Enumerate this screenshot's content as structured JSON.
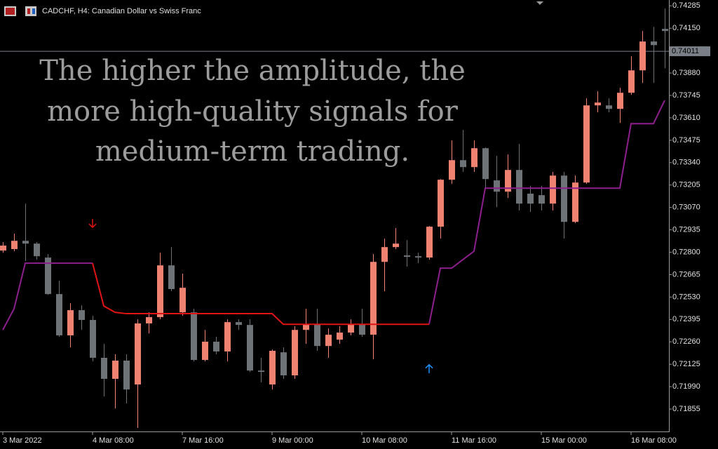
{
  "chart_data": {
    "type": "candlestick",
    "header": "CADCHF, H4:  Canadian Dollar vs Swiss Franc",
    "annotations": [
      "The higher the amplitude, the",
      "more high-quality signals for",
      "medium-term trading."
    ],
    "categories": [
      "3 Mar 2022",
      null,
      null,
      null,
      null,
      null,
      null,
      null,
      "4 Mar 08:00",
      null,
      null,
      null,
      null,
      null,
      null,
      null,
      "7 Mar 16:00",
      null,
      null,
      null,
      null,
      null,
      null,
      null,
      "9 Mar 00:00",
      null,
      null,
      null,
      null,
      null,
      null,
      null,
      "10 Mar 08:00",
      null,
      null,
      null,
      null,
      null,
      null,
      null,
      "11 Mar 16:00",
      null,
      null,
      null,
      null,
      null,
      null,
      null,
      "15 Mar 00:00",
      null,
      null,
      null,
      null,
      null,
      null,
      null,
      "16 Mar 08:00",
      null,
      null,
      null
    ],
    "open": [
      0.7281,
      0.72819,
      0.72869,
      0.72852,
      0.72768,
      0.72548,
      0.72299,
      0.72451,
      0.72392,
      0.72164,
      0.72037,
      0.72147,
      0.72003,
      0.72371,
      0.72409,
      0.72721,
      0.72438,
      0.72438,
      0.72151,
      0.72261,
      0.72202,
      0.72379,
      0.72362,
      0.72087,
      0.72003,
      0.72197,
      0.72058,
      0.72332,
      0.72366,
      0.72235,
      0.72273,
      0.72316,
      0.72366,
      0.72303,
      0.72742,
      0.72831,
      0.72781,
      0.72776,
      0.72768,
      0.72954,
      0.73237,
      0.73355,
      0.73313,
      0.73427,
      0.73233,
      0.73165,
      0.73296,
      0.73153,
      0.73144,
      0.73093,
      0.73262,
      0.72983,
      0.7322,
      0.73685,
      0.73685,
      0.73664,
      0.73761,
      0.73896,
      0.7407,
      0.74146
    ],
    "high": [
      0.72861,
      0.72912,
      0.73093,
      0.72861,
      0.72789,
      0.72628,
      0.72493,
      0.7248,
      0.72417,
      0.72248,
      0.72185,
      0.72185,
      0.72396,
      0.72438,
      0.72797,
      0.72831,
      0.72671,
      0.72459,
      0.72332,
      0.7229,
      0.72396,
      0.72396,
      0.72396,
      0.72164,
      0.72214,
      0.72227,
      0.72354,
      0.72459,
      0.72459,
      0.72341,
      0.72354,
      0.72396,
      0.72459,
      0.72789,
      0.72882,
      0.72946,
      0.72873,
      0.72797,
      0.72958,
      0.73241,
      0.73474,
      0.73537,
      0.73474,
      0.73431,
      0.73381,
      0.73389,
      0.73453,
      0.73199,
      0.73199,
      0.73284,
      0.73284,
      0.73262,
      0.73727,
      0.7377,
      0.73727,
      0.73791,
      0.73981,
      0.74133,
      0.74158,
      0.74268
    ],
    "low": [
      0.72797,
      0.72806,
      0.72747,
      0.72755,
      0.72544,
      0.7229,
      0.72227,
      0.72332,
      0.72142,
      0.71931,
      0.71859,
      0.71889,
      0.71741,
      0.72311,
      0.72396,
      0.72565,
      0.72417,
      0.72142,
      0.72142,
      0.72185,
      0.72142,
      0.72332,
      0.72079,
      0.72016,
      0.71973,
      0.72037,
      0.72037,
      0.72248,
      0.72206,
      0.72164,
      0.72248,
      0.72299,
      0.7229,
      0.72155,
      0.72565,
      0.72819,
      0.72713,
      0.72734,
      0.72755,
      0.72882,
      0.73212,
      0.73284,
      0.73284,
      0.73186,
      0.73072,
      0.73127,
      0.73051,
      0.73043,
      0.73051,
      0.73051,
      0.72882,
      0.72975,
      0.73212,
      0.73643,
      0.73643,
      0.73579,
      0.73748,
      0.7382,
      0.7382,
      0.73909
    ],
    "close": [
      0.7284,
      0.72869,
      0.72852,
      0.72776,
      0.72548,
      0.72299,
      0.72451,
      0.72392,
      0.72164,
      0.72037,
      0.72147,
      0.71973,
      0.72371,
      0.72409,
      0.72721,
      0.72578,
      0.72586,
      0.72151,
      0.72261,
      0.72202,
      0.72379,
      0.72362,
      0.72087,
      0.72079,
      0.72206,
      0.72058,
      0.72332,
      0.72366,
      0.72235,
      0.72303,
      0.72316,
      0.72366,
      0.72303,
      0.72742,
      0.72831,
      0.72852,
      0.72772,
      0.72768,
      0.72954,
      0.73237,
      0.73355,
      0.73313,
      0.73427,
      0.73241,
      0.73165,
      0.73296,
      0.73093,
      0.73093,
      0.73093,
      0.73262,
      0.72983,
      0.7322,
      0.73685,
      0.73702,
      0.73664,
      0.73761,
      0.73896,
      0.7407,
      0.74048,
      0.74133
    ],
    "bull_color": "#f08272",
    "bear_color": "#6e7378",
    "indicator_lines": [
      {
        "color": "#8e1f8e",
        "values": [
          0.72332,
          0.72459,
          0.72734,
          0.72734,
          0.72734,
          0.72734,
          0.72734,
          0.72734,
          0.72734,
          null,
          null,
          null,
          null,
          null,
          null,
          null,
          null,
          null,
          null,
          null,
          null,
          null,
          null,
          null,
          null,
          null,
          null,
          null,
          null,
          null,
          null,
          null,
          null,
          null,
          null,
          null,
          null,
          null,
          0.72366,
          0.72704,
          0.72704,
          0.72755,
          0.72806,
          0.73186,
          0.73186,
          0.73186,
          0.73186,
          0.73186,
          0.73186,
          0.73186,
          0.73186,
          0.73186,
          0.73186,
          0.73186,
          0.73186,
          0.73186,
          0.73575,
          0.73575,
          0.73575,
          0.73715
        ]
      },
      {
        "color": "#e01414",
        "values": [
          null,
          null,
          null,
          null,
          null,
          null,
          null,
          null,
          0.72734,
          0.72476,
          0.72438,
          0.7243,
          0.7243,
          0.7243,
          0.7243,
          0.7243,
          0.7243,
          0.7243,
          0.7243,
          0.7243,
          0.7243,
          0.7243,
          0.7243,
          0.7243,
          0.7243,
          0.72366,
          0.72366,
          0.72366,
          0.72366,
          0.72366,
          0.72366,
          0.72366,
          0.72366,
          0.72366,
          0.72366,
          0.72366,
          0.72366,
          0.72366,
          0.72366,
          null,
          null,
          null,
          null,
          null,
          null,
          null,
          null,
          null,
          null,
          null,
          null,
          null,
          null,
          null,
          null,
          null,
          null,
          null,
          null,
          null
        ]
      }
    ],
    "signals": [
      {
        "index": 8,
        "direction": "down",
        "price": 0.72975,
        "color": "#e01414"
      },
      {
        "index": 38,
        "direction": "up",
        "price": 0.72097,
        "color": "#1e90ff"
      }
    ],
    "current_price": 0.74011,
    "ylim": [
      0.7172,
      0.7432
    ],
    "yticks": [
      0.74285,
      {
        "value": 0.7415,
        "label": "0.74150"
      },
      {
        "value": 0.7388,
        "label": "0.73880"
      },
      0.73745,
      {
        "value": 0.7361,
        "label": "0.73610"
      },
      0.73475,
      {
        "value": 0.7334,
        "label": "0.73340"
      },
      0.73205,
      {
        "value": 0.7307,
        "label": "0.73070"
      },
      0.72935,
      {
        "value": 0.728,
        "label": "0.72800"
      },
      0.72665,
      {
        "value": 0.7253,
        "label": "0.72530"
      },
      0.72395,
      {
        "value": 0.7226,
        "label": "0.72260"
      },
      0.72125,
      {
        "value": 0.7199,
        "label": "0.71990"
      },
      0.71855
    ]
  }
}
